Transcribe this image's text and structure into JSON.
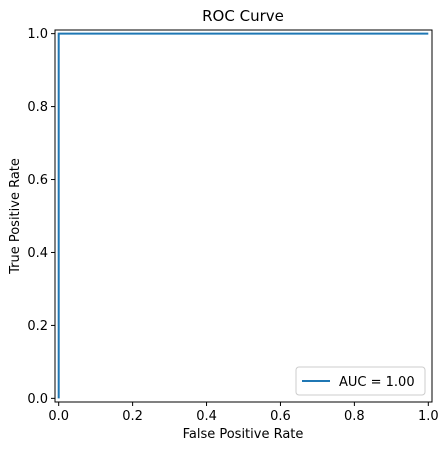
{
  "chart_data": {
    "type": "line",
    "title": "ROC Curve",
    "xlabel": "False Positive Rate",
    "ylabel": "True Positive Rate",
    "xlim": [
      -0.01,
      1.01
    ],
    "ylim": [
      -0.01,
      1.01
    ],
    "xticks": [
      0.0,
      0.2,
      0.4,
      0.6,
      0.8,
      1.0
    ],
    "xtick_labels": [
      "0.0",
      "0.2",
      "0.4",
      "0.6",
      "0.8",
      "1.0"
    ],
    "yticks": [
      0.0,
      0.2,
      0.4,
      0.6,
      0.8,
      1.0
    ],
    "ytick_labels": [
      "0.0",
      "0.2",
      "0.4",
      "0.6",
      "0.8",
      "1.0"
    ],
    "grid": false,
    "legend_position": "lower-right",
    "series": [
      {
        "name": "AUC = 1.00",
        "color": "#1f77b4",
        "x": [
          0.0,
          0.0,
          1.0
        ],
        "y": [
          0.0,
          1.0,
          1.0
        ]
      }
    ]
  }
}
